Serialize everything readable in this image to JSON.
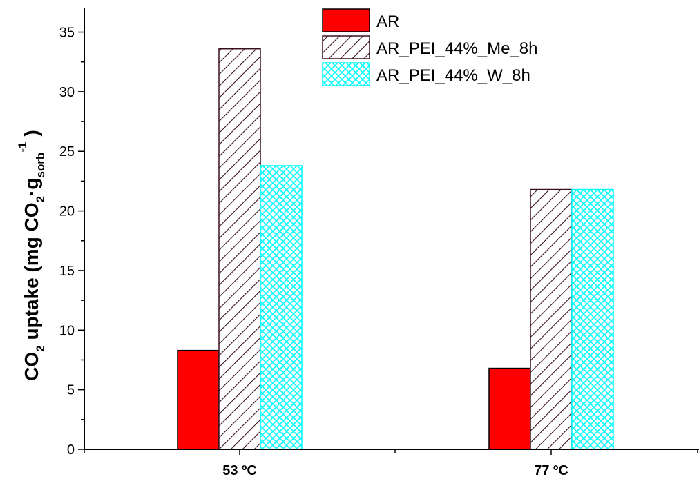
{
  "chart_data": {
    "type": "bar",
    "categories": [
      "53 ºC",
      "77 ºC"
    ],
    "series": [
      {
        "name": "AR",
        "values": [
          8.3,
          6.8
        ],
        "color": "#ff0000",
        "fill": "solid"
      },
      {
        "name": "AR_PEI_44%_Me_8h",
        "values": [
          33.6,
          21.8
        ],
        "color": "#3a1020",
        "fill": "diagonal-hatch"
      },
      {
        "name": "AR_PEI_44%_W_8h",
        "values": [
          23.8,
          21.8
        ],
        "color": "#00ffff",
        "fill": "crosshatch"
      }
    ],
    "ylabel": {
      "pre": "CO",
      "sub1": "2",
      "mid": " uptake (mg CO",
      "sub2": "2",
      "dot": "·g",
      "sub3": "sorb",
      "sup": "-1",
      "post": ")"
    },
    "ylim": [
      0,
      37
    ],
    "yticks": [
      0,
      5,
      10,
      15,
      20,
      25,
      30,
      35
    ],
    "grid": false,
    "legend_position": "top-center"
  }
}
